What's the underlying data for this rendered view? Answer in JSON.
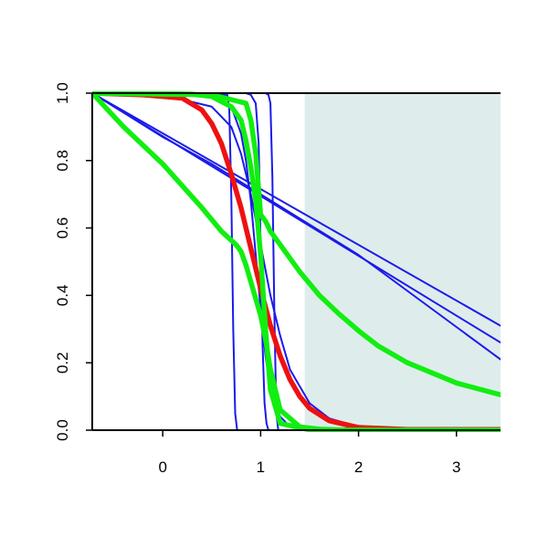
{
  "chart_data": {
    "type": "line",
    "title": "",
    "xlabel": "",
    "ylabel": "",
    "xlim": [
      -0.72,
      3.45
    ],
    "ylim": [
      0,
      1
    ],
    "x_ticks": [
      {
        "value": 0,
        "label": "0"
      },
      {
        "value": 1,
        "label": "1"
      },
      {
        "value": 2,
        "label": "2"
      },
      {
        "value": 3,
        "label": "3"
      }
    ],
    "y_ticks": [
      {
        "value": 0.0,
        "label": "0.0"
      },
      {
        "value": 0.2,
        "label": "0.2"
      },
      {
        "value": 0.4,
        "label": "0.4"
      },
      {
        "value": 0.6,
        "label": "0.6"
      },
      {
        "value": 0.8,
        "label": "0.8"
      },
      {
        "value": 1.0,
        "label": "1.0"
      }
    ],
    "grid": false,
    "shaded_region": {
      "x_from": 1.45,
      "x_to": 3.45,
      "color": "#dfecec"
    },
    "colors": {
      "blue": "#1a1aeb",
      "red": "#ee1111",
      "green": "#11ee11",
      "axis": "#000000"
    },
    "series": [
      {
        "color_key": "blue",
        "weight": "thin",
        "x": [
          -0.72,
          3.45
        ],
        "y": [
          1.0,
          0.31
        ]
      },
      {
        "color_key": "blue",
        "weight": "thin",
        "x": [
          -0.72,
          3.45
        ],
        "y": [
          1.0,
          0.26
        ]
      },
      {
        "color_key": "blue",
        "weight": "thin",
        "x": [
          -0.72,
          0.0,
          0.5,
          1.0,
          2.0,
          3.45
        ],
        "y": [
          1.0,
          0.87,
          0.79,
          0.7,
          0.52,
          0.21
        ]
      },
      {
        "color_key": "blue",
        "weight": "thin",
        "x": [
          -0.72,
          0.0,
          0.5,
          0.7,
          0.8,
          0.9,
          1.0,
          1.1,
          1.2,
          1.3,
          1.5,
          1.7,
          2.0,
          2.5,
          3.45
        ],
        "y": [
          1.0,
          0.995,
          0.96,
          0.9,
          0.82,
          0.7,
          0.55,
          0.4,
          0.28,
          0.18,
          0.08,
          0.035,
          0.01,
          0.002,
          0.0
        ]
      },
      {
        "color_key": "blue",
        "weight": "thin",
        "x": [
          -0.72,
          0.5,
          0.7,
          0.8,
          0.85,
          0.9,
          0.95,
          1.0,
          1.05,
          1.1,
          1.2,
          1.3,
          1.5,
          3.45
        ],
        "y": [
          1.0,
          0.995,
          0.96,
          0.88,
          0.8,
          0.68,
          0.52,
          0.36,
          0.22,
          0.12,
          0.04,
          0.01,
          0.0,
          0.0
        ]
      },
      {
        "color_key": "blue",
        "weight": "thin",
        "x": [
          -0.72,
          0.66,
          0.68,
          0.7,
          0.72,
          0.74,
          0.76,
          0.8,
          3.45
        ],
        "y": [
          1.0,
          0.995,
          0.95,
          0.7,
          0.3,
          0.05,
          0.0,
          0.0,
          0.0
        ]
      },
      {
        "color_key": "blue",
        "weight": "thin",
        "x": [
          -0.72,
          0.85,
          0.9,
          0.95,
          0.98,
          1.0,
          1.02,
          1.04,
          1.06,
          1.08,
          1.1,
          3.45
        ],
        "y": [
          1.0,
          1.0,
          0.995,
          0.97,
          0.85,
          0.55,
          0.25,
          0.08,
          0.02,
          0.0,
          0.0,
          0.0
        ]
      },
      {
        "color_key": "blue",
        "weight": "thin",
        "x": [
          -0.72,
          1.05,
          1.08,
          1.1,
          1.12,
          1.14,
          1.16,
          1.18,
          3.45
        ],
        "y": [
          1.0,
          1.0,
          0.995,
          0.97,
          0.75,
          0.35,
          0.05,
          0.0,
          0.0
        ]
      },
      {
        "color_key": "red",
        "weight": "thick",
        "x": [
          -0.72,
          -0.2,
          0.0,
          0.2,
          0.4,
          0.5,
          0.6,
          0.7,
          0.8,
          0.9,
          1.0,
          1.1,
          1.2,
          1.3,
          1.4,
          1.5,
          1.7,
          2.0,
          2.5,
          3.45
        ],
        "y": [
          1.0,
          0.995,
          0.99,
          0.985,
          0.95,
          0.91,
          0.85,
          0.76,
          0.66,
          0.54,
          0.42,
          0.31,
          0.22,
          0.15,
          0.1,
          0.065,
          0.028,
          0.008,
          0.002,
          0.002
        ]
      },
      {
        "color_key": "green",
        "weight": "thick",
        "x": [
          -0.72,
          -0.3,
          0.0,
          0.3,
          0.5,
          0.7,
          0.8,
          0.85,
          0.9,
          0.95,
          1.0,
          1.05,
          1.1,
          1.2,
          1.5,
          3.45
        ],
        "y": [
          1.0,
          1.0,
          0.999,
          0.997,
          0.99,
          0.96,
          0.92,
          0.86,
          0.78,
          0.68,
          0.52,
          0.3,
          0.12,
          0.02,
          0.001,
          0.0
        ]
      },
      {
        "color_key": "green",
        "weight": "thick",
        "x": [
          -0.72,
          -0.4,
          0.0,
          0.4,
          0.6,
          0.75,
          0.8,
          0.85,
          0.9,
          0.95,
          1.0,
          1.05,
          1.1,
          1.2,
          1.4,
          1.6,
          1.8,
          2.0,
          2.5,
          3.0,
          3.45
        ],
        "y": [
          1.0,
          0.9,
          0.79,
          0.66,
          0.59,
          0.55,
          0.53,
          0.49,
          0.44,
          0.39,
          0.34,
          0.27,
          0.18,
          0.06,
          0.01,
          0.003,
          0.001,
          0.0,
          0.0,
          0.0,
          0.0
        ]
      },
      {
        "color_key": "green",
        "weight": "thick",
        "x": [
          -0.72,
          0.5,
          0.85,
          0.9,
          0.95,
          1.0,
          1.05,
          1.1,
          1.2,
          1.4,
          1.6,
          1.8,
          2.0,
          2.2,
          2.5,
          3.0,
          3.45
        ],
        "y": [
          1.0,
          0.995,
          0.97,
          0.92,
          0.82,
          0.64,
          0.62,
          0.59,
          0.55,
          0.47,
          0.4,
          0.345,
          0.295,
          0.25,
          0.2,
          0.14,
          0.105
        ]
      }
    ]
  }
}
